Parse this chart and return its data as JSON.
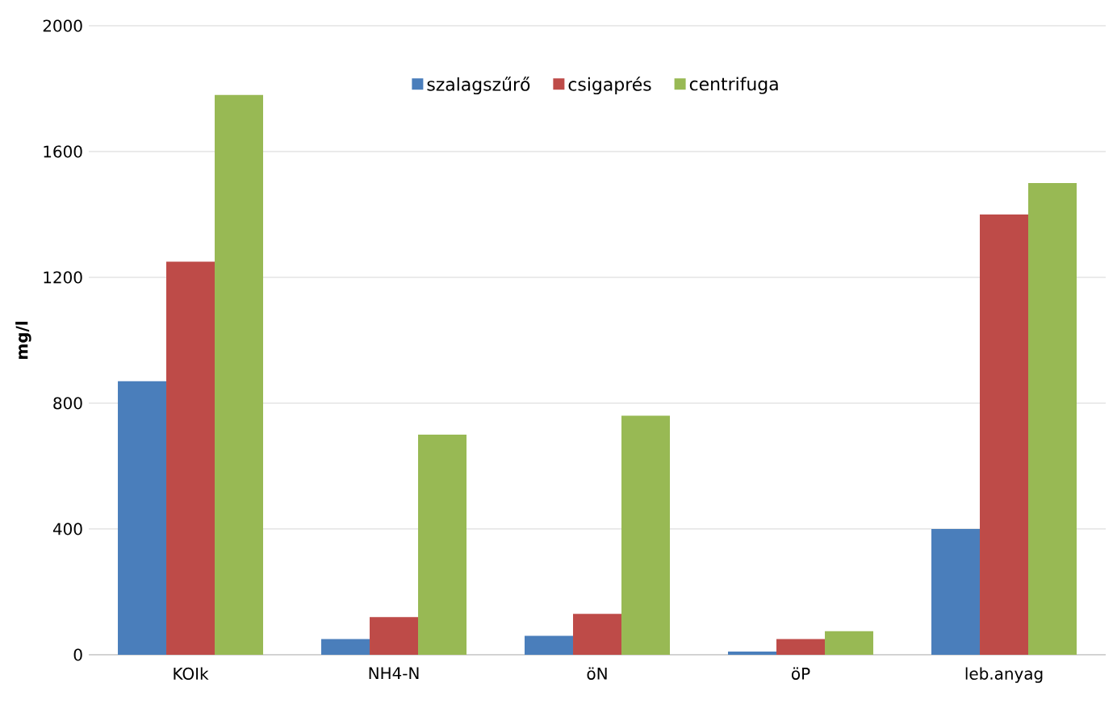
{
  "chart_data": {
    "type": "bar",
    "ylabel": "mg/l",
    "categories": [
      "KOIk",
      "NH4-N",
      "öN",
      "öP",
      "leb.anyag"
    ],
    "series": [
      {
        "name": "szalagszűrő",
        "color": "#4a7ebb",
        "values": [
          870,
          50,
          60,
          10,
          400
        ]
      },
      {
        "name": "csigaprés",
        "color": "#be4b48",
        "values": [
          1250,
          120,
          130,
          50,
          1400
        ]
      },
      {
        "name": "centrifuga",
        "color": "#98b954",
        "values": [
          1780,
          700,
          760,
          75,
          1500
        ]
      }
    ],
    "ylim": [
      0,
      2000
    ],
    "yticks": [
      0,
      400,
      800,
      1200,
      1600,
      2000
    ],
    "grid": "y",
    "legend": "top"
  }
}
